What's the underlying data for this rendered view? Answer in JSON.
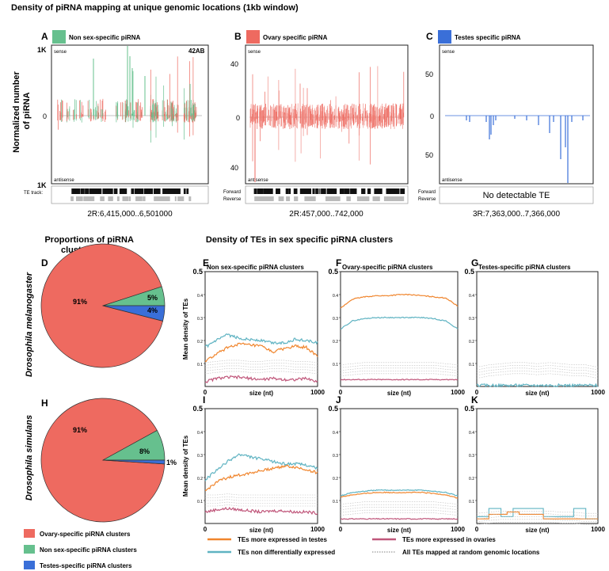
{
  "figure_title": "Density of piRNA mapping at unique genomic locations (1kb window)",
  "colors": {
    "non_sex": "#66c08e",
    "ovary": "#ee6a60",
    "testes": "#3a6fd8",
    "orange": "#f0852d",
    "teal": "#5fb3c2",
    "pink": "#c0577b",
    "gray": "#aaaaaa"
  },
  "top": {
    "ylabel": "Normalized number\nof piRNA",
    "te_track_label": "TE track:",
    "forward": "Forward",
    "reverse": "Reverse",
    "sense": "sense",
    "antisense": "antisense",
    "panels": [
      {
        "letter": "A",
        "title": "Non sex-specific piRNA",
        "ytop": "1K",
        "ymid": "0",
        "ybot": "1K",
        "annotation": "42AB",
        "coords": "2R:6,415,000..6,501000",
        "te": "tracks"
      },
      {
        "letter": "B",
        "title": "Ovary specific piRNA",
        "ytop": "40",
        "ymid": "0",
        "ybot": "40",
        "annotation": "",
        "coords": "2R:457,000..742,000",
        "te": "tracks"
      },
      {
        "letter": "C",
        "title": "Testes specific piRNA",
        "ytop": "50",
        "ymid": "0",
        "ybot": "50",
        "annotation": "",
        "coords": "3R:7,363,000..7,366,000",
        "te": "none",
        "no_te_text": "No detectable TE"
      }
    ]
  },
  "pies_title": "Proportions of piRNA\nclusters types",
  "lines_title": "Density of TEs in sex specific piRNA clusters",
  "species": [
    "Drosophila melanogaster",
    "Drosophila simulans"
  ],
  "legend_pie": [
    {
      "label": "Ovary-specific piRNA clusters",
      "color": "#ee6a60"
    },
    {
      "label": "Non sex-specific piRNA clusters",
      "color": "#66c08e"
    },
    {
      "label": "Testes-specific piRNA clusters",
      "color": "#3a6fd8"
    }
  ],
  "legend_lines": [
    {
      "label": "TEs more expressed in testes",
      "color": "#f0852d",
      "style": "solid"
    },
    {
      "label": "TEs more expressed in ovaries",
      "color": "#c0577b",
      "style": "solid"
    },
    {
      "label": "TEs non differentially expressed",
      "color": "#5fb3c2",
      "style": "solid"
    },
    {
      "label": "All TEs mapped at random genomic locations",
      "color": "#555555",
      "style": "dotted"
    }
  ],
  "chart_data": [
    {
      "panel": "D",
      "type": "pie",
      "title": "Proportions of piRNA clusters types",
      "species": "Drosophila melanogaster",
      "slices": [
        {
          "label": "Ovary-specific",
          "value": 91,
          "text": "91%"
        },
        {
          "label": "Non sex-specific",
          "value": 5,
          "text": "5%"
        },
        {
          "label": "Testes-specific",
          "value": 4,
          "text": "4%"
        }
      ]
    },
    {
      "panel": "H",
      "type": "pie",
      "title": "Proportions of piRNA clusters types",
      "species": "Drosophila simulans",
      "slices": [
        {
          "label": "Ovary-specific",
          "value": 91,
          "text": "91%"
        },
        {
          "label": "Non sex-specific",
          "value": 8,
          "text": "8%"
        },
        {
          "label": "Testes-specific",
          "value": 1,
          "text": "1%"
        }
      ]
    },
    {
      "panel": "E",
      "type": "line",
      "title": "Non sex-specific piRNA clusters",
      "xlabel": "size (nt)",
      "ylabel": "Mean density of TEs",
      "xlim": [
        0,
        1000
      ],
      "ylim": [
        0,
        0.5
      ],
      "xticks": [
        "0",
        "1000"
      ],
      "yticks": [
        "0.1",
        "0.2",
        "0.3",
        "0.4",
        "0.5"
      ],
      "series": [
        {
          "name": "TEs non differentially expressed",
          "x": [
            0,
            100,
            200,
            300,
            400,
            500,
            600,
            700,
            800,
            900,
            1000
          ],
          "values": [
            0.17,
            0.2,
            0.225,
            0.21,
            0.205,
            0.2,
            0.19,
            0.19,
            0.205,
            0.2,
            0.19
          ]
        },
        {
          "name": "TEs more expressed in testes",
          "x": [
            0,
            100,
            200,
            300,
            400,
            500,
            600,
            700,
            800,
            900,
            1000
          ],
          "values": [
            0.11,
            0.14,
            0.17,
            0.185,
            0.18,
            0.175,
            0.15,
            0.165,
            0.175,
            0.17,
            0.13
          ]
        },
        {
          "name": "TEs more expressed in ovaries",
          "x": [
            0,
            100,
            200,
            300,
            400,
            500,
            600,
            700,
            800,
            900,
            1000
          ],
          "values": [
            0.02,
            0.035,
            0.04,
            0.04,
            0.035,
            0.03,
            0.035,
            0.03,
            0.03,
            0.035,
            0.02
          ]
        },
        {
          "name": "All TEs mapped at random genomic locations",
          "x": [
            0,
            100,
            200,
            300,
            400,
            500,
            600,
            700,
            800,
            900,
            1000
          ],
          "values": [
            0.08,
            0.085,
            0.09,
            0.09,
            0.085,
            0.085,
            0.09,
            0.09,
            0.085,
            0.085,
            0.08
          ]
        }
      ]
    },
    {
      "panel": "F",
      "type": "line",
      "title": "Ovary-specific piRNA clusters",
      "xlabel": "size (nt)",
      "ylabel": "",
      "xlim": [
        0,
        1000
      ],
      "ylim": [
        0,
        0.5
      ],
      "xticks": [
        "0",
        "1000"
      ],
      "yticks": [
        "0.1",
        "0.2",
        "0.3",
        "0.4",
        "0.5"
      ],
      "series": [
        {
          "name": "TEs more expressed in testes",
          "x": [
            0,
            100,
            200,
            300,
            400,
            500,
            600,
            700,
            800,
            900,
            1000
          ],
          "values": [
            0.34,
            0.38,
            0.39,
            0.395,
            0.395,
            0.4,
            0.4,
            0.395,
            0.39,
            0.385,
            0.35
          ]
        },
        {
          "name": "TEs non differentially expressed",
          "x": [
            0,
            100,
            200,
            300,
            400,
            500,
            600,
            700,
            800,
            900,
            1000
          ],
          "values": [
            0.25,
            0.285,
            0.295,
            0.3,
            0.3,
            0.3,
            0.3,
            0.3,
            0.295,
            0.285,
            0.25
          ]
        },
        {
          "name": "All TEs mapped at random genomic locations",
          "x": [
            0,
            100,
            200,
            300,
            400,
            500,
            600,
            700,
            800,
            900,
            1000
          ],
          "values": [
            0.07,
            0.075,
            0.08,
            0.08,
            0.08,
            0.08,
            0.08,
            0.08,
            0.08,
            0.075,
            0.07
          ]
        },
        {
          "name": "TEs more expressed in ovaries",
          "x": [
            0,
            100,
            200,
            300,
            400,
            500,
            600,
            700,
            800,
            900,
            1000
          ],
          "values": [
            0.03,
            0.03,
            0.03,
            0.03,
            0.03,
            0.03,
            0.03,
            0.03,
            0.03,
            0.03,
            0.03
          ]
        }
      ]
    },
    {
      "panel": "G",
      "type": "line",
      "title": "Testes-specific piRNA clusters",
      "xlabel": "size (nt)",
      "ylabel": "",
      "xlim": [
        0,
        1000
      ],
      "ylim": [
        0,
        0.5
      ],
      "xticks": [
        "0",
        "1000"
      ],
      "yticks": [
        "0.1",
        "0.2",
        "0.3",
        "0.4",
        "0.5"
      ],
      "series": [
        {
          "name": "All TEs mapped at random genomic locations",
          "x": [
            0,
            100,
            200,
            300,
            400,
            500,
            600,
            700,
            800,
            900,
            1000
          ],
          "values": [
            0.06,
            0.07,
            0.075,
            0.08,
            0.08,
            0.075,
            0.08,
            0.075,
            0.07,
            0.07,
            0.06
          ]
        },
        {
          "name": "TEs non differentially expressed",
          "x": [
            0,
            100,
            200,
            300,
            400,
            500,
            600,
            700,
            800,
            900,
            1000
          ],
          "values": [
            0.005,
            0.005,
            0.005,
            0.005,
            0.005,
            0.005,
            0.005,
            0.005,
            0.005,
            0.005,
            0.005
          ]
        }
      ]
    },
    {
      "panel": "I",
      "type": "line",
      "title": "",
      "xlabel": "size (nt)",
      "ylabel": "Mean density of TEs",
      "xlim": [
        0,
        1000
      ],
      "ylim": [
        0,
        0.5
      ],
      "xticks": [
        "0",
        "1000"
      ],
      "yticks": [
        "0.1",
        "0.2",
        "0.3",
        "0.4",
        "0.5"
      ],
      "series": [
        {
          "name": "TEs non differentially expressed",
          "x": [
            0,
            100,
            200,
            300,
            400,
            500,
            600,
            700,
            800,
            900,
            1000
          ],
          "values": [
            0.19,
            0.23,
            0.27,
            0.3,
            0.29,
            0.28,
            0.27,
            0.26,
            0.26,
            0.255,
            0.24
          ]
        },
        {
          "name": "TEs more expressed in testes",
          "x": [
            0,
            100,
            200,
            300,
            400,
            500,
            600,
            700,
            800,
            900,
            1000
          ],
          "values": [
            0.14,
            0.18,
            0.2,
            0.21,
            0.22,
            0.23,
            0.24,
            0.25,
            0.245,
            0.235,
            0.22
          ]
        },
        {
          "name": "TEs more expressed in ovaries",
          "x": [
            0,
            100,
            200,
            300,
            400,
            500,
            600,
            700,
            800,
            900,
            1000
          ],
          "values": [
            0.05,
            0.06,
            0.065,
            0.06,
            0.055,
            0.05,
            0.055,
            0.055,
            0.05,
            0.05,
            0.045
          ]
        },
        {
          "name": "All TEs mapped at random genomic locations",
          "x": [
            0,
            100,
            200,
            300,
            400,
            500,
            600,
            700,
            800,
            900,
            1000
          ],
          "values": [
            0.1,
            0.1,
            0.105,
            0.1,
            0.1,
            0.1,
            0.1,
            0.1,
            0.1,
            0.1,
            0.1
          ]
        }
      ]
    },
    {
      "panel": "J",
      "type": "line",
      "title": "",
      "xlabel": "size (nt)",
      "ylabel": "",
      "xlim": [
        0,
        1000
      ],
      "ylim": [
        0,
        0.5
      ],
      "xticks": [
        "0",
        "1000"
      ],
      "yticks": [
        "0.1",
        "0.2",
        "0.3",
        "0.4",
        "0.5"
      ],
      "series": [
        {
          "name": "TEs non differentially expressed",
          "x": [
            0,
            100,
            200,
            300,
            400,
            500,
            600,
            700,
            800,
            900,
            1000
          ],
          "values": [
            0.12,
            0.135,
            0.14,
            0.145,
            0.145,
            0.145,
            0.145,
            0.145,
            0.14,
            0.135,
            0.12
          ]
        },
        {
          "name": "TEs more expressed in testes",
          "x": [
            0,
            100,
            200,
            300,
            400,
            500,
            600,
            700,
            800,
            900,
            1000
          ],
          "values": [
            0.115,
            0.125,
            0.13,
            0.135,
            0.135,
            0.135,
            0.135,
            0.135,
            0.13,
            0.125,
            0.11
          ]
        },
        {
          "name": "TEs more expressed in ovaries",
          "x": [
            0,
            100,
            200,
            300,
            400,
            500,
            600,
            700,
            800,
            900,
            1000
          ],
          "values": [
            0.02,
            0.02,
            0.02,
            0.02,
            0.02,
            0.02,
            0.02,
            0.02,
            0.02,
            0.02,
            0.02
          ]
        },
        {
          "name": "All TEs mapped at random genomic locations",
          "x": [
            0,
            100,
            200,
            300,
            400,
            500,
            600,
            700,
            800,
            900,
            1000
          ],
          "values": [
            0.06,
            0.065,
            0.07,
            0.07,
            0.07,
            0.07,
            0.07,
            0.07,
            0.07,
            0.065,
            0.06
          ]
        }
      ]
    },
    {
      "panel": "K",
      "type": "line",
      "title": "",
      "xlabel": "size (nt)",
      "ylabel": "",
      "xlim": [
        0,
        1000
      ],
      "ylim": [
        0,
        0.5
      ],
      "xticks": [
        "0",
        "1000"
      ],
      "yticks": [
        "0.1",
        "0.2",
        "0.3",
        "0.4",
        "0.5"
      ],
      "series": [
        {
          "name": "TEs non differentially expressed",
          "x": [
            0,
            50,
            100,
            150,
            200,
            250,
            300,
            350,
            400,
            450,
            500,
            550,
            600,
            650,
            700,
            750,
            800,
            850,
            900,
            950,
            1000
          ],
          "values": [
            0.03,
            0.03,
            0.065,
            0.065,
            0.03,
            0.03,
            0.065,
            0.065,
            0.065,
            0.065,
            0.065,
            0.03,
            0.03,
            0.03,
            0.03,
            0.03,
            0.065,
            0.065,
            0.02,
            0.02,
            0.02
          ]
        },
        {
          "name": "TEs more expressed in testes",
          "x": [
            0,
            50,
            100,
            150,
            200,
            250,
            300,
            350,
            400,
            450,
            500,
            550,
            600,
            650,
            700,
            750,
            800,
            850,
            900,
            950,
            1000
          ],
          "values": [
            0.02,
            0.02,
            0.04,
            0.04,
            0.04,
            0.05,
            0.05,
            0.04,
            0.04,
            0.04,
            0.04,
            0.02,
            0.02,
            0.02,
            0.02,
            0.02,
            0.02,
            0.02,
            0.02,
            0.02,
            0.02
          ]
        },
        {
          "name": "All TEs mapped at random genomic locations",
          "x": [
            0,
            100,
            200,
            300,
            400,
            500,
            600,
            700,
            800,
            900,
            1000
          ],
          "values": [
            0.02,
            0.025,
            0.03,
            0.03,
            0.03,
            0.03,
            0.03,
            0.025,
            0.025,
            0.02,
            0.02
          ]
        }
      ]
    }
  ]
}
